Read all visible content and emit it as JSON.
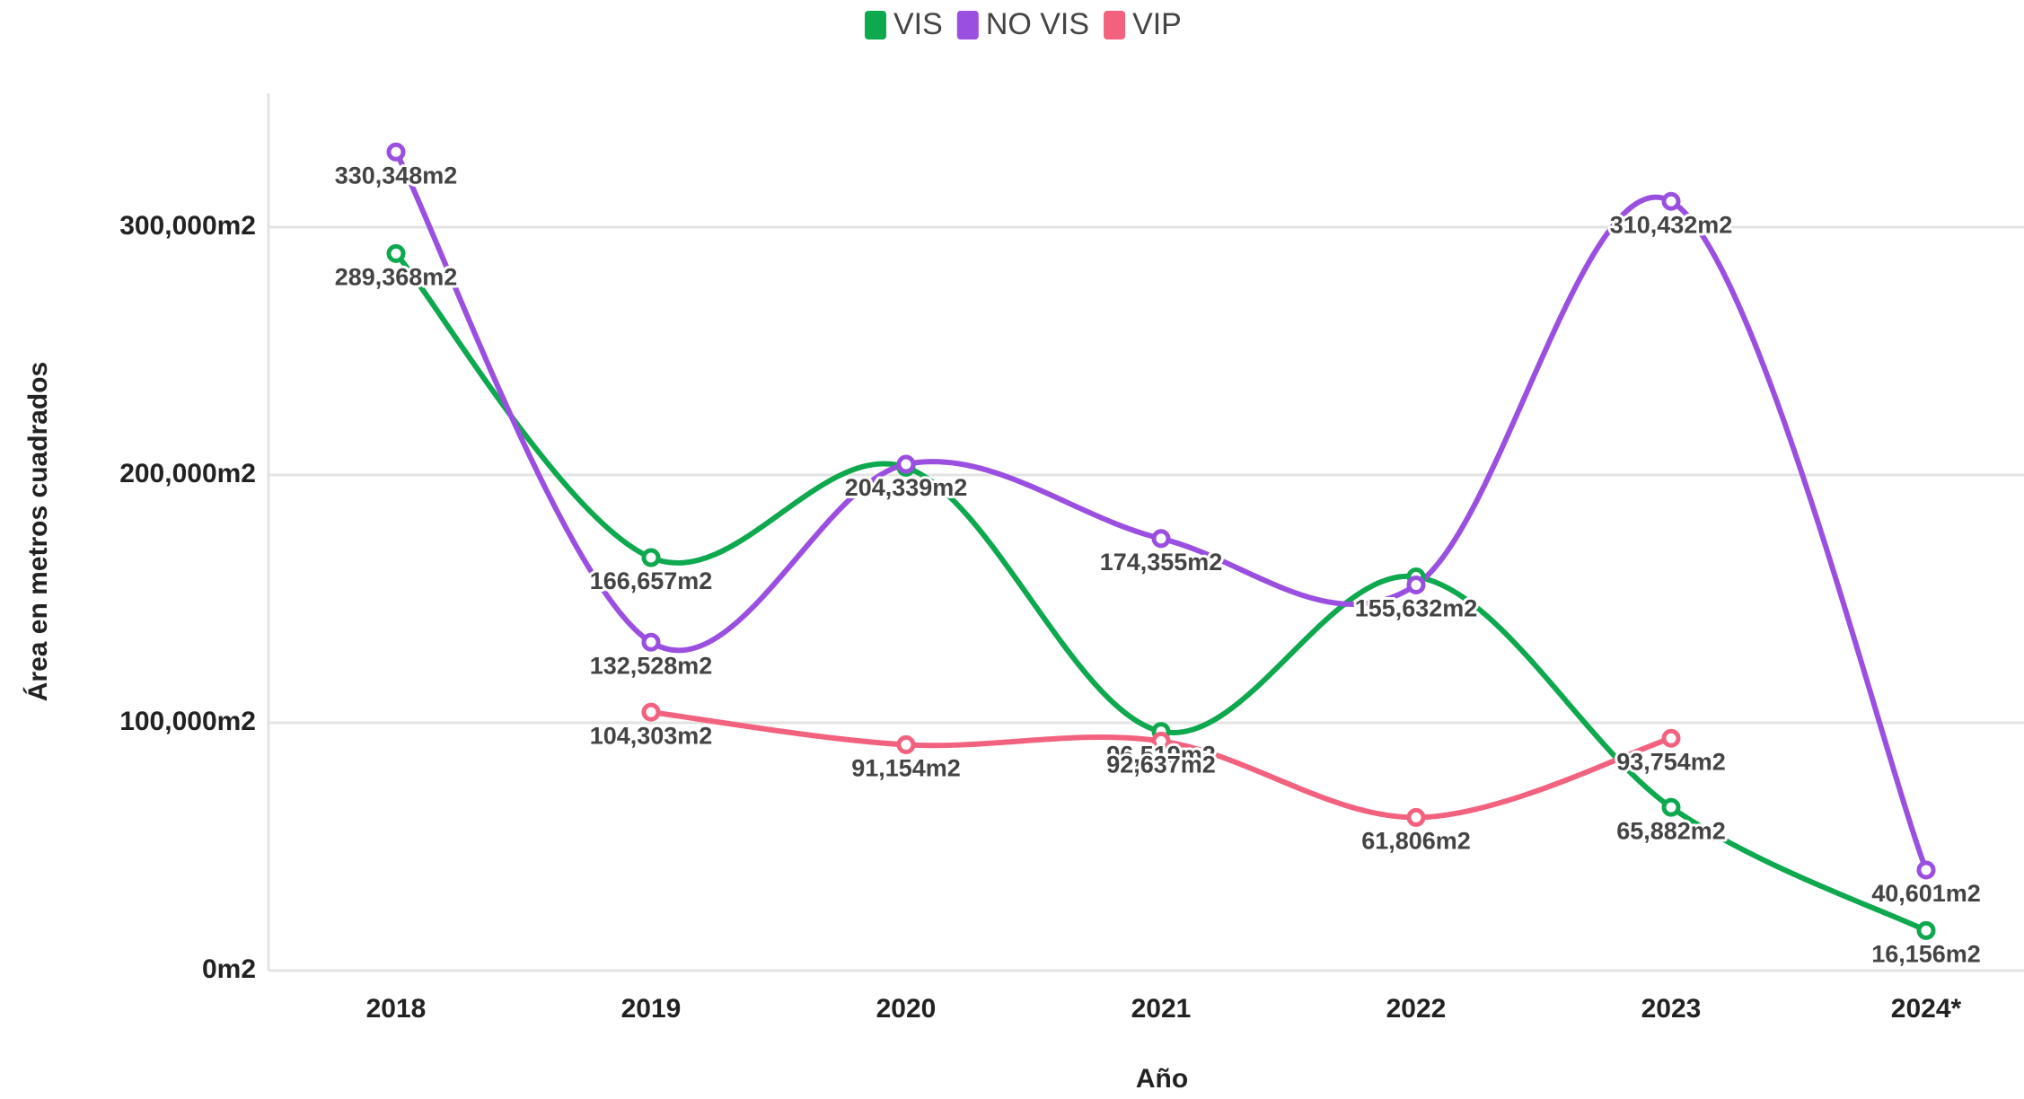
{
  "chart_data": {
    "type": "line",
    "x_label": "Año",
    "y_label": "Área en metros cuadrados",
    "categories": [
      "2018",
      "2019",
      "2020",
      "2021",
      "2022",
      "2023",
      "2024*"
    ],
    "series": [
      {
        "name": "VIS",
        "color": "#0ea84f",
        "values": [
          289368,
          166657,
          203100,
          96519,
          158900,
          65882,
          16156
        ],
        "value_labels": [
          "289,368m2",
          "166,657m2",
          null,
          "96,519m2",
          null,
          "65,882m2",
          "16,156m2"
        ]
      },
      {
        "name": "NO VIS",
        "color": "#9b4fe0",
        "values": [
          330348,
          132528,
          204339,
          174355,
          155632,
          310432,
          40601
        ],
        "value_labels": [
          "330,348m2",
          "132,528m2",
          "204,339m2",
          "174,355m2",
          "155,632m2",
          "310,432m2",
          "40,601m2"
        ]
      },
      {
        "name": "VIP",
        "color": "#f2627f",
        "values": [
          null,
          104303,
          91154,
          92637,
          61806,
          93754,
          null
        ],
        "value_labels": [
          null,
          "104,303m2",
          "91,154m2",
          "92,637m2",
          "61,806m2",
          "93,754m2",
          null
        ]
      }
    ],
    "ylim": [
      0,
      354000
    ],
    "yticks": [
      {
        "value": 0,
        "label": "0m2"
      },
      {
        "value": 100000,
        "label": "100,000m2"
      },
      {
        "value": 200000,
        "label": "200,000m2"
      },
      {
        "value": 300000,
        "label": "300,000m2"
      }
    ],
    "grid": true,
    "legend": "top"
  }
}
